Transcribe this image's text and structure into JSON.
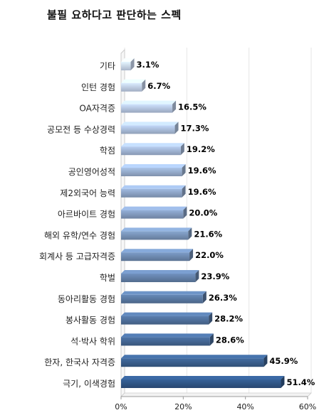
{
  "chart_data": {
    "type": "bar",
    "orientation": "horizontal",
    "title": "불필 요하다고 판단하는 스펙",
    "categories": [
      "기타",
      "인턴 경험",
      "OA자격증",
      "공모전 등 수상경력",
      "학점",
      "공인영어성적",
      "제2외국어 능력",
      "아르바이트 경험",
      "해외 유학/연수 경험",
      "회계사 등 고급자격증",
      "학벌",
      "동아리활동 경험",
      "봉사활동 경험",
      "석·박사 학위",
      "한자, 한국사 자격증",
      "극기, 이색경험"
    ],
    "values": [
      3.1,
      6.7,
      16.5,
      17.3,
      19.2,
      19.6,
      19.6,
      20.0,
      21.6,
      22.0,
      23.9,
      26.3,
      28.2,
      28.6,
      45.9,
      51.4
    ],
    "value_labels": [
      "3.1%",
      "6.7%",
      "16.5%",
      "17.3%",
      "19.2%",
      "19.6%",
      "19.6%",
      "20.0%",
      "21.6%",
      "22.0%",
      "23.9%",
      "26.3%",
      "28.2%",
      "28.6%",
      "45.9%",
      "51.4%"
    ],
    "xlim": [
      0,
      60
    ],
    "xticks": [
      "0%",
      "20%",
      "40%",
      "60%"
    ],
    "grid": true,
    "colors": {
      "bar_light": "#c8d6ee",
      "bar_dark": "#2f5484",
      "label": "#222222",
      "value_label": "#000000",
      "grid": "#e6e6e6",
      "axis": "#999999"
    }
  }
}
